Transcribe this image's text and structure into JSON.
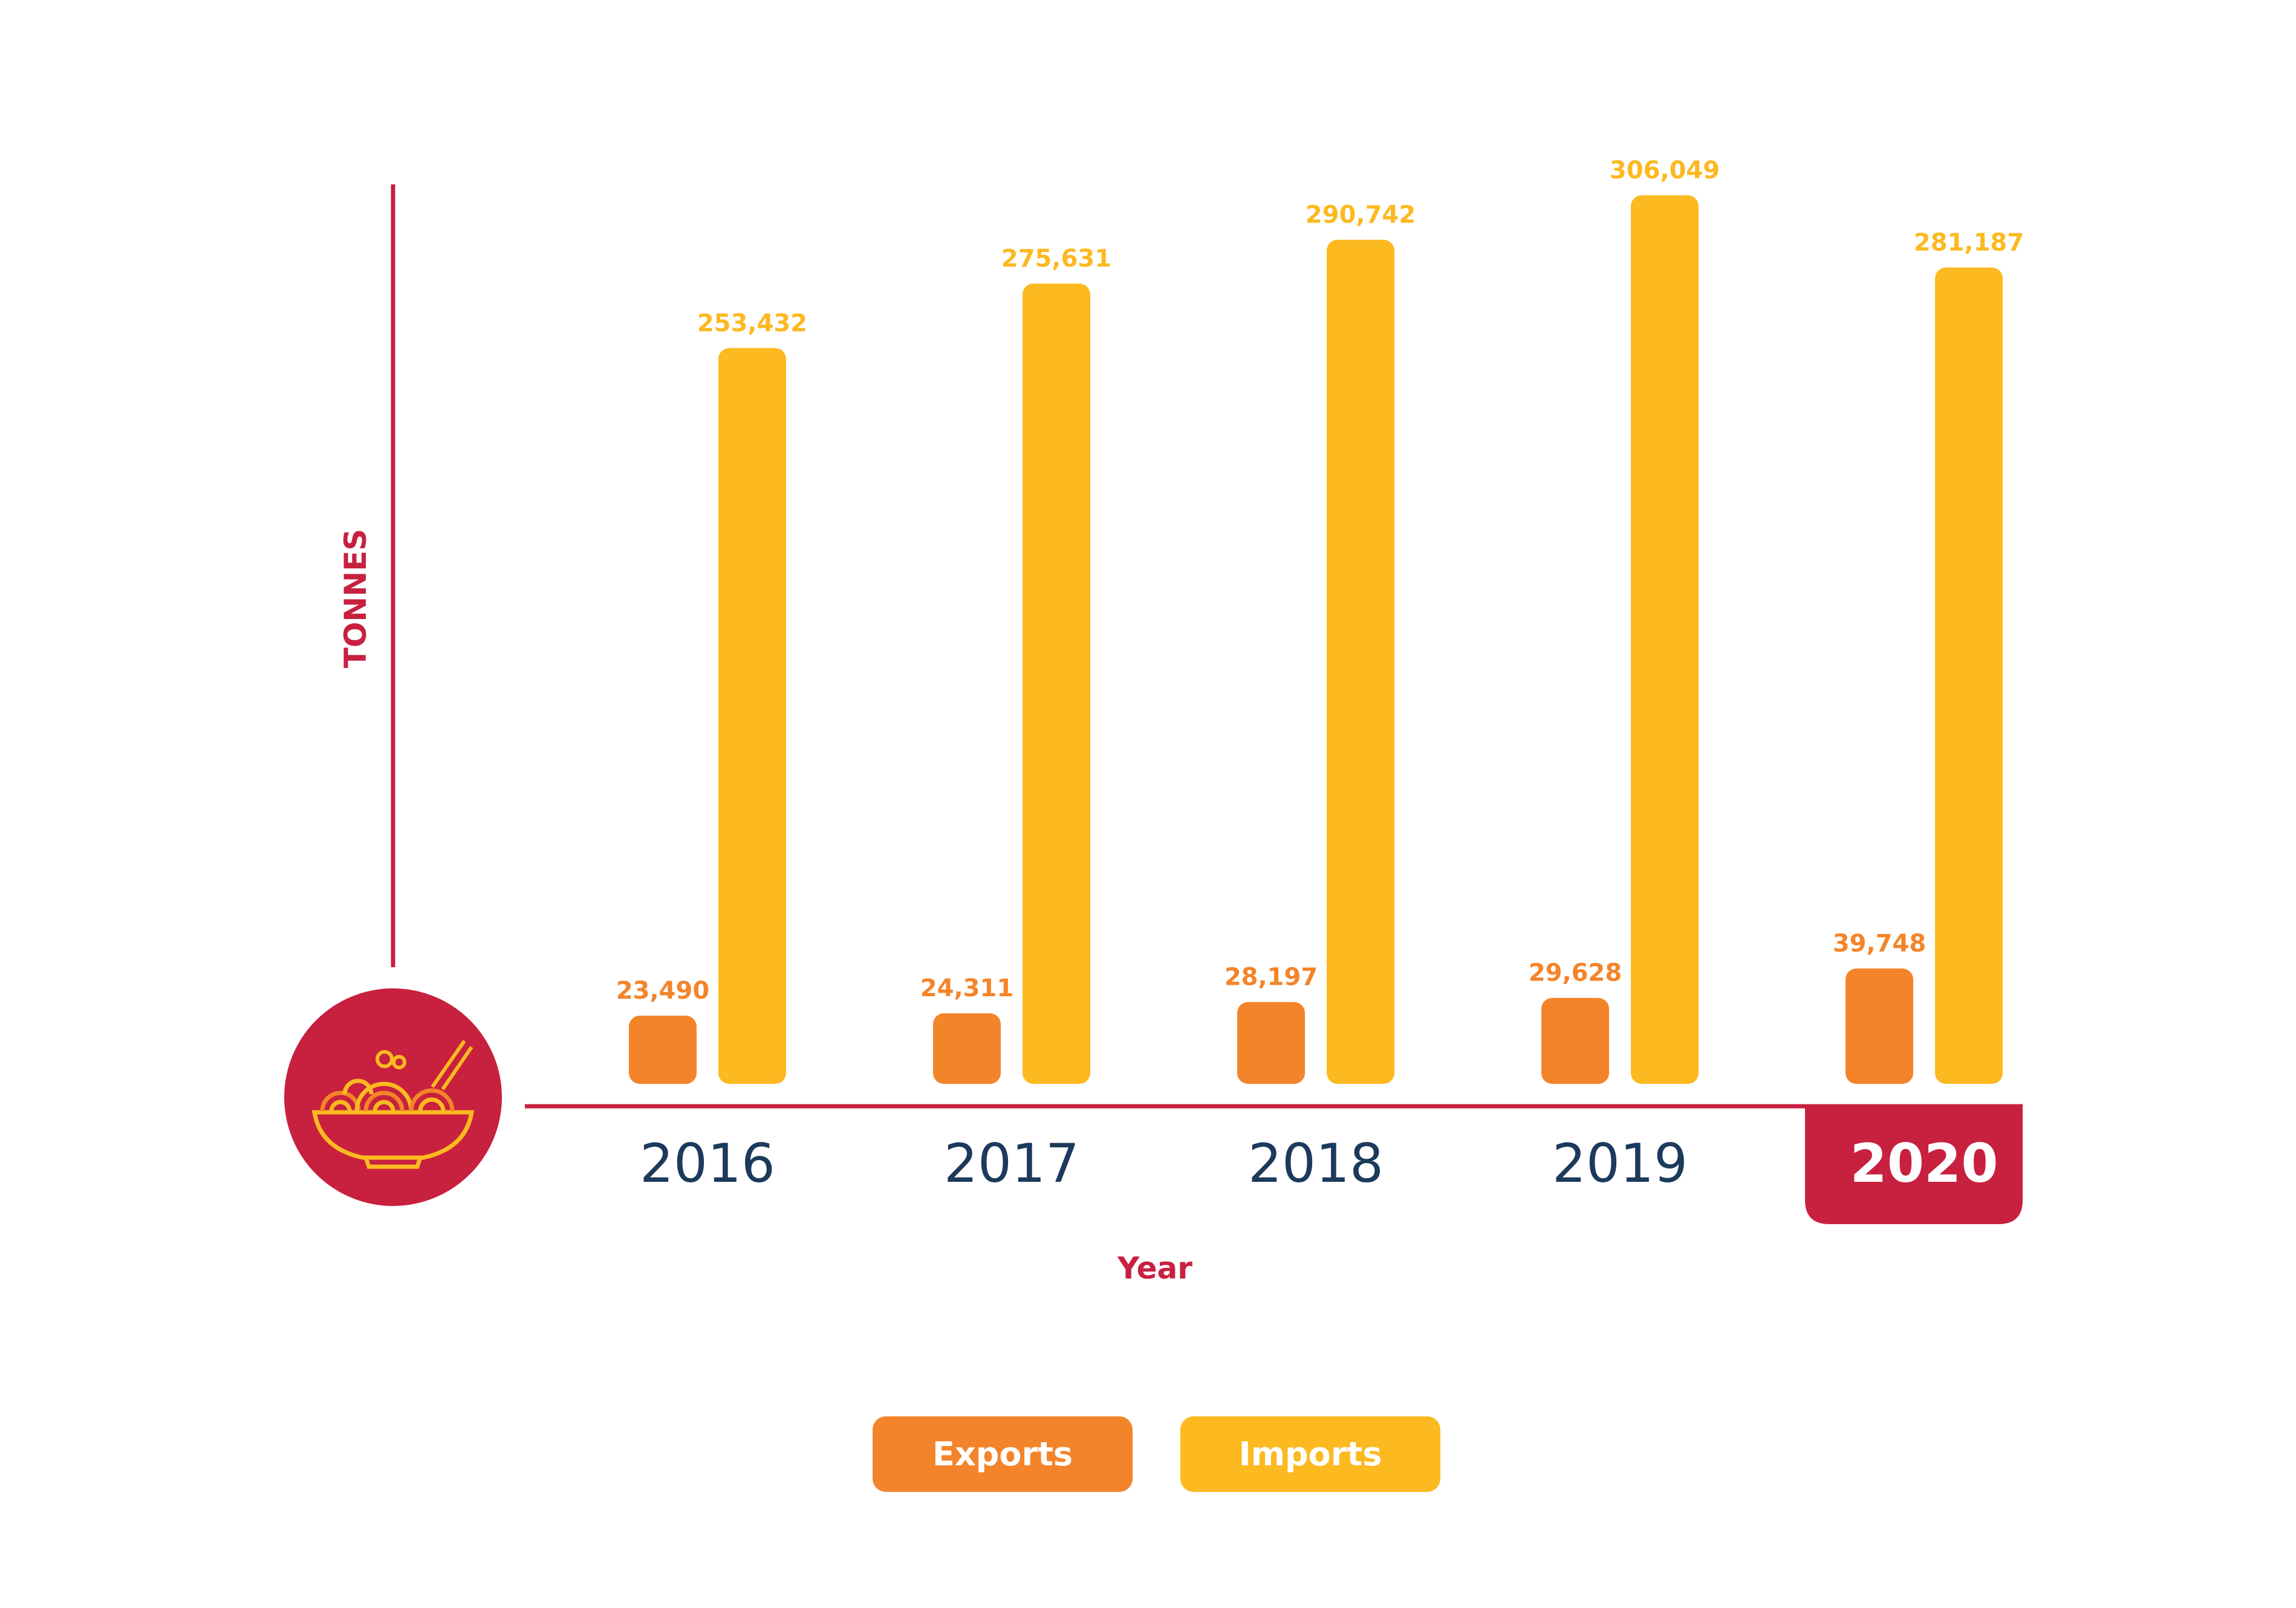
{
  "colors": {
    "exports": "#f4842a",
    "imports": "#fcb920",
    "accent": "#c8203f",
    "year_text": "#1b3a5c",
    "white": "#ffffff"
  },
  "icon": "noodle-bowl-icon",
  "highlighted_category": "2020",
  "chart_data": {
    "type": "bar",
    "categories": [
      "2016",
      "2017",
      "2018",
      "2019",
      "2020"
    ],
    "series": [
      {
        "name": "Exports",
        "values": [
          23490,
          24311,
          28197,
          29628,
          39748
        ],
        "labels": [
          "23,490",
          "24,311",
          "28,197",
          "29,628",
          "39,748"
        ]
      },
      {
        "name": "Imports",
        "values": [
          253432,
          275631,
          290742,
          306049,
          281187
        ],
        "labels": [
          "253,432",
          "275,631",
          "290,742",
          "306,049",
          "281,187"
        ]
      }
    ],
    "ylabel": "TONNES",
    "xlabel": "Year",
    "ylim": [
      0,
      340000
    ],
    "grid": false,
    "legend": "bottom-center"
  }
}
